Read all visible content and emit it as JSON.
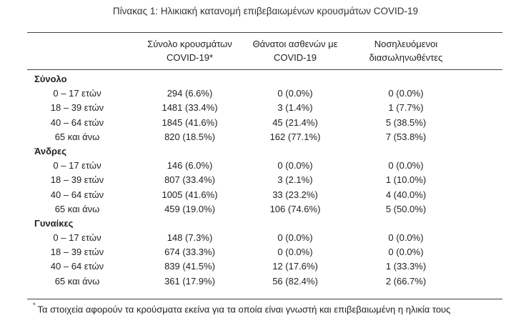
{
  "caption": "Πίνακας 1: Ηλικιακή κατανομή επιβεβαιωμένων κρουσμάτων COVID-19",
  "columns": [
    {
      "line1": "Σύνολο κρουσμάτων",
      "line2": "COVID-19*"
    },
    {
      "line1": "Θάνατοι ασθενών με",
      "line2": "COVID-19"
    },
    {
      "line1": "Νοσηλευόμενοι",
      "line2": "διασωληνωθέντες"
    }
  ],
  "groups": [
    {
      "name": "Σύνολο",
      "rows": [
        {
          "age": "0 – 17 ετών",
          "cases": "294 (6.6%)",
          "deaths": "0 (0.0%)",
          "intubated": "0 (0.0%)"
        },
        {
          "age": "18 – 39 ετών",
          "cases": "1481 (33.4%)",
          "deaths": "3 (1.4%)",
          "intubated": "1 (7.7%)"
        },
        {
          "age": "40 – 64 ετών",
          "cases": "1845 (41.6%)",
          "deaths": "45 (21.4%)",
          "intubated": "5 (38.5%)"
        },
        {
          "age": "65 και άνω",
          "cases": "820 (18.5%)",
          "deaths": "162 (77.1%)",
          "intubated": "7 (53.8%)"
        }
      ]
    },
    {
      "name": "Άνδρες",
      "rows": [
        {
          "age": "0 – 17 ετών",
          "cases": "146 (6.0%)",
          "deaths": "0 (0.0%)",
          "intubated": "0 (0.0%)"
        },
        {
          "age": "18 – 39 ετών",
          "cases": "807 (33.4%)",
          "deaths": "3 (2.1%)",
          "intubated": "1 (10.0%)"
        },
        {
          "age": "40 – 64 ετών",
          "cases": "1005 (41.6%)",
          "deaths": "33 (23.2%)",
          "intubated": "4 (40.0%)"
        },
        {
          "age": "65 και άνω",
          "cases": "459 (19.0%)",
          "deaths": "106 (74.6%)",
          "intubated": "5 (50.0%)"
        }
      ]
    },
    {
      "name": "Γυναίκες",
      "rows": [
        {
          "age": "0 – 17 ετών",
          "cases": "148 (7.3%)",
          "deaths": "0 (0.0%)",
          "intubated": "0 (0.0%)"
        },
        {
          "age": "18 – 39 ετών",
          "cases": "674 (33.3%)",
          "deaths": "0 (0.0%)",
          "intubated": "0 (0.0%)"
        },
        {
          "age": "40 – 64 ετών",
          "cases": "839 (41.5%)",
          "deaths": "12 (17.6%)",
          "intubated": "1 (33.3%)"
        },
        {
          "age": "65 και άνω",
          "cases": "361 (17.9%)",
          "deaths": "56 (82.4%)",
          "intubated": "2 (66.7%)"
        }
      ]
    }
  ],
  "footnote": {
    "marker": "*",
    "text": "Τα στοιχεία αφορούν τα κρούσματα εκείνα για τα οποία είναι γνωστή και επιβεβαιωμένη η ηλικία τους"
  }
}
